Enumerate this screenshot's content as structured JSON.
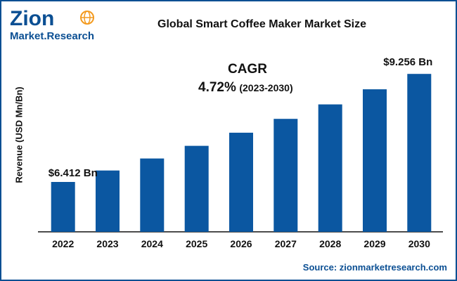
{
  "header": {
    "brand_word": "Zion",
    "brand_sub": "Market.Research",
    "title": "Global Smart Coffee Maker Market Size"
  },
  "annotations": {
    "cagr_label": "CAGR",
    "cagr_value": "4.72%",
    "cagr_period": "(2023-2030)",
    "first_value_label": "$6.412 Bn",
    "last_value_label": "$9.256 Bn"
  },
  "footer": {
    "source": "Source: zionmarketresearch.com"
  },
  "colors": {
    "bar": "#0b57a1",
    "frame": "#0b4f93",
    "brand_orange": "#f39a1e"
  },
  "chart_data": {
    "type": "bar",
    "title": "Global Smart Coffee Maker Market Size",
    "xlabel": "",
    "ylabel": "Revenue (USD Mn/Bn)",
    "categories": [
      "2022",
      "2023",
      "2024",
      "2025",
      "2026",
      "2027",
      "2028",
      "2029",
      "2030"
    ],
    "values": [
      6.412,
      6.714,
      7.031,
      7.362,
      7.709,
      8.073,
      8.454,
      8.852,
      9.256
    ],
    "ylim": [
      5.1,
      9.5
    ],
    "grid": false,
    "legend": "none"
  }
}
